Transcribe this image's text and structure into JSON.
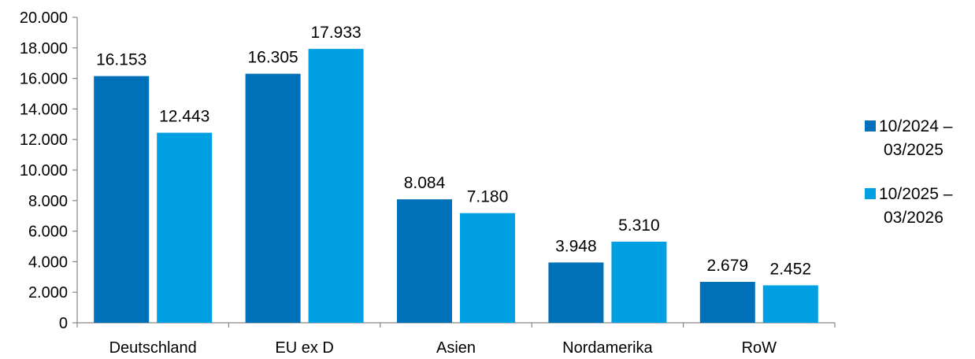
{
  "chart_data": {
    "type": "bar",
    "title": "",
    "xlabel": "",
    "ylabel": "",
    "categories": [
      "Deutschland",
      "EU ex D",
      "Asien",
      "Nordamerika",
      "RoW"
    ],
    "series": [
      {
        "name_lines": [
          "10/2024 –",
          "03/2025"
        ],
        "color": "#0070B9",
        "values": [
          16153,
          16305,
          8084,
          3948,
          2679
        ],
        "labels": [
          "16.153",
          "16.305",
          "8.084",
          "3.948",
          "2.679"
        ]
      },
      {
        "name_lines": [
          "10/2025 –",
          "03/2026"
        ],
        "color": "#00A0E3",
        "values": [
          12443,
          17933,
          7180,
          5310,
          2452
        ],
        "labels": [
          "12.443",
          "17.933",
          "7.180",
          "5.310",
          "2.452"
        ]
      }
    ],
    "ylim": [
      0,
      20000
    ],
    "yticks": [
      0,
      2000,
      4000,
      6000,
      8000,
      10000,
      12000,
      14000,
      16000,
      18000,
      20000
    ],
    "ytick_labels": [
      "0",
      "2.000",
      "4.000",
      "6.000",
      "8.000",
      "10.000",
      "12.000",
      "14.000",
      "16.000",
      "18.000",
      "20.000"
    ],
    "grid": false,
    "legend_position": "right"
  }
}
